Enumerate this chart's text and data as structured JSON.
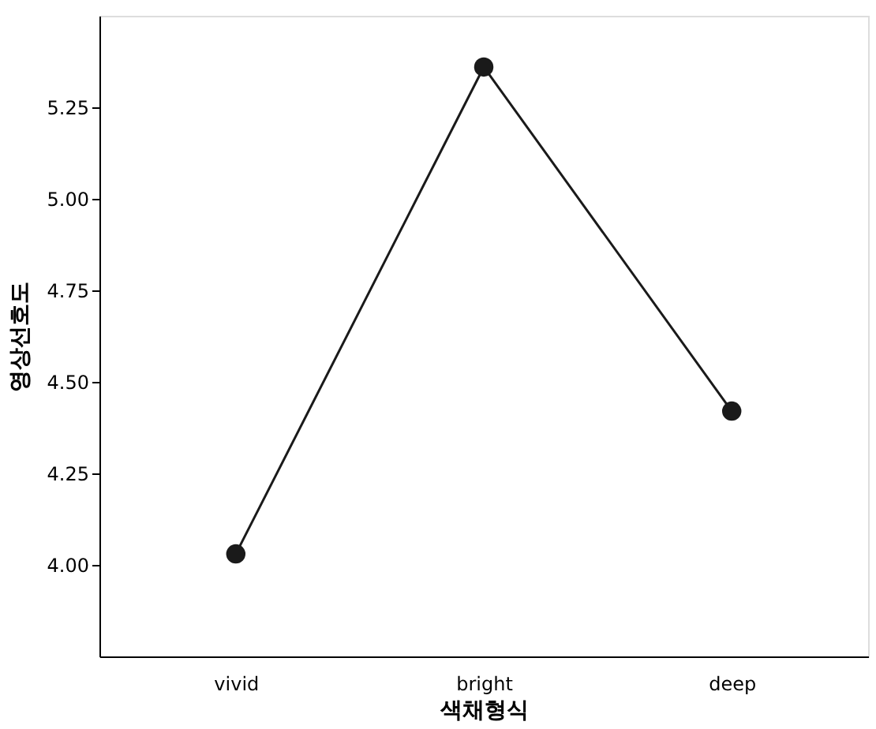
{
  "chart_data": {
    "type": "line",
    "xlabel": "색채형식",
    "ylabel": "영상선호도",
    "categories": [
      "vivid",
      "bright",
      "deep"
    ],
    "series": [
      {
        "color": "#1a1a1a",
        "values": [
          4.03,
          5.36,
          4.42
        ]
      }
    ],
    "ylim": [
      3.75,
      5.5
    ],
    "yticks": [
      {
        "value": 4.0,
        "label": "4.00"
      },
      4.25,
      {
        "value": 4.5,
        "label": "4.50"
      },
      4.75,
      {
        "value": 5.0,
        "label": "5.00"
      },
      5.25
    ],
    "marker": "circle",
    "line_style": "solid",
    "grid": false
  }
}
